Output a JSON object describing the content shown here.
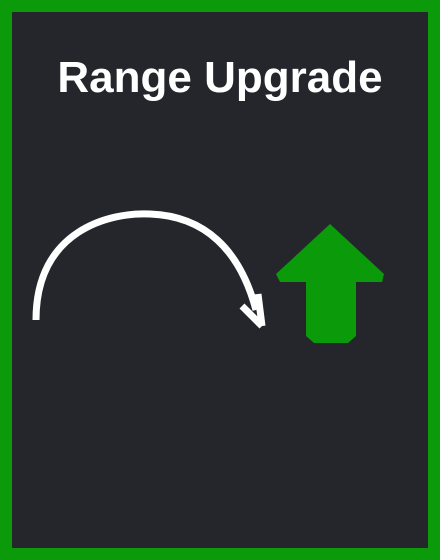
{
  "card": {
    "title": "Range Upgrade",
    "border_color": "#0a9a0a",
    "background_color": "#24262b",
    "icons": {
      "arc": "curved-arrow-icon",
      "upgrade": "up-arrow-icon"
    },
    "arrow_color": "#0a9a0a",
    "arc_color": "#ffffff"
  }
}
